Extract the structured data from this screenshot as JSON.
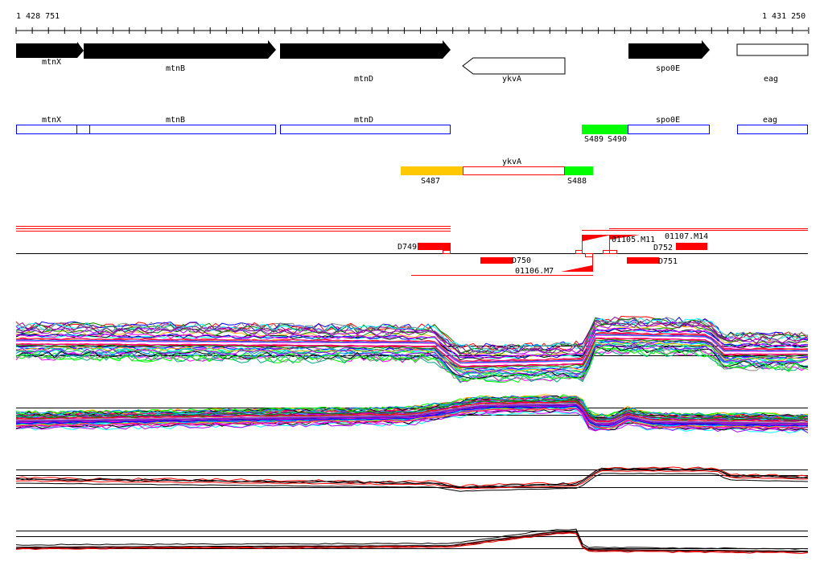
{
  "ruler": {
    "start_label": "1 428 751",
    "end_label": "1 431 250"
  },
  "genes": [
    {
      "name": "mtnX",
      "strand": "+"
    },
    {
      "name": "mtnB",
      "strand": "+"
    },
    {
      "name": "mtnD",
      "strand": "+"
    },
    {
      "name": "ykvA",
      "strand": "-"
    },
    {
      "name": "spo0E",
      "strand": "+"
    },
    {
      "name": "eag",
      "strand": "none"
    }
  ],
  "annotation_boxes": [
    "mtnX",
    "mtnB",
    "mtnD",
    "spo0E",
    "eag",
    "ykvA"
  ],
  "segments": [
    {
      "label": "S487",
      "color": "#ffc800"
    },
    {
      "label": "S488",
      "color": "#00ff00"
    },
    {
      "label": "S489",
      "color": "#00ff00"
    },
    {
      "label": "S490",
      "color": "#00ff00"
    }
  ],
  "features": [
    "D749",
    "D750",
    "D751",
    "D752",
    "01106.M7",
    "01105.M11",
    "01107.M14"
  ],
  "colors": {
    "accent_red": "#ff0000",
    "box_blue": "#0000ff"
  }
}
